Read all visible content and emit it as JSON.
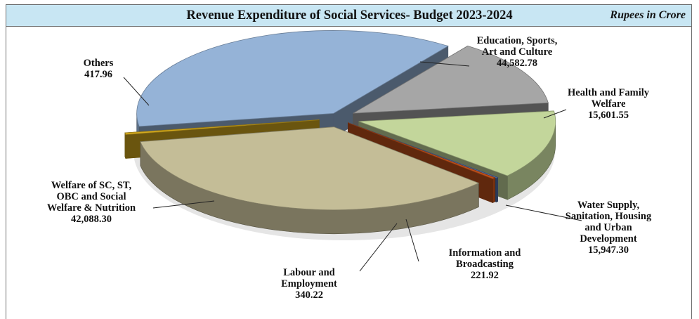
{
  "header": {
    "title": "Revenue Expenditure of Social Services- Budget 2023-2024",
    "units": "Rupees in Crore"
  },
  "chart_data": {
    "type": "pie",
    "title": "Revenue Expenditure of Social Services- Budget 2023-2024",
    "unit": "Rupees in Crore",
    "three_d": true,
    "exploded": true,
    "slices": [
      {
        "label_lines": [
          "Education, Sports,",
          "Art and  Culture"
        ],
        "value": 44582.78,
        "value_text": "44,582.78",
        "color": "#95b3d7"
      },
      {
        "label_lines": [
          "Health and Family",
          "Welfare"
        ],
        "value": 15601.55,
        "value_text": "15,601.55",
        "color": "#a6a6a6"
      },
      {
        "label_lines": [
          "Water Supply,",
          "Sanitation, Housing",
          "and Urban",
          "Development"
        ],
        "value": 15947.3,
        "value_text": "15,947.30",
        "color": "#c3d69b"
      },
      {
        "label_lines": [
          "Information and",
          "Broadcasting"
        ],
        "value": 221.92,
        "value_text": "221.92",
        "color": "#4f6fa8"
      },
      {
        "label_lines": [
          "Labour and",
          "Employment"
        ],
        "value": 340.22,
        "value_text": "340.22",
        "color": "#c0501a"
      },
      {
        "label_lines": [
          "Welfare of SC, ST,",
          "OBC and Social",
          "Welfare & Nutrition"
        ],
        "value": 42088.3,
        "value_text": "42,088.30",
        "color": "#c4bd97"
      },
      {
        "label_lines": [
          "Others"
        ],
        "value": 417.96,
        "value_text": "417.96",
        "color": "#d4aa1e"
      }
    ]
  }
}
